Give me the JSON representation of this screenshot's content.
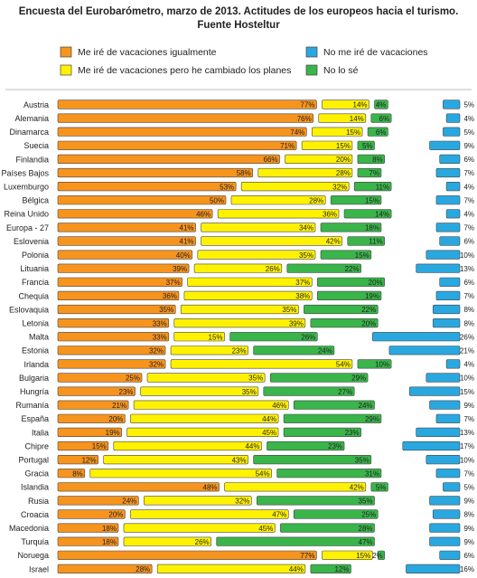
{
  "title": "Encuesta del Eurobarómetro, marzo de 2013. Actitudes de los europeos hacia el turismo.",
  "subtitle": "Fuente Hosteltur",
  "colors": {
    "orange": "#F7941D",
    "yellow": "#FFF200",
    "green": "#39B54A",
    "blue": "#29A8E0",
    "border": "#444444",
    "separator": "#bdbdbd"
  },
  "chart_data": {
    "type": "bar",
    "stacked": true,
    "orientation": "horizontal",
    "grid": false,
    "legend_position": "top",
    "categories": [
      "Austria",
      "Alemania",
      "Dinamarca",
      "Suecia",
      "Finlandia",
      "Países Bajos",
      "Luxemburgo",
      "Bélgica",
      "Reina Unido",
      "Europa - 27",
      "Eslovenia",
      "Polonia",
      "Lituania",
      "Francia",
      "Chequia",
      "Eslovaquia",
      "Letonia",
      "Malta",
      "Estonia",
      "Irlanda",
      "Bulgaria",
      "Hungría",
      "Rumanía",
      "España",
      "Italia",
      "Chipre",
      "Portugal",
      "Gracia",
      "Islandia",
      "Rusia",
      "Croacia",
      "Macedonia",
      "Turquía",
      "Noruega",
      "Israel"
    ],
    "series": [
      {
        "name": "Me iré de vacaciones igualmente",
        "color": "#F7941D",
        "values": [
          77,
          76,
          74,
          71,
          66,
          58,
          53,
          50,
          46,
          41,
          41,
          40,
          39,
          37,
          36,
          35,
          33,
          33,
          32,
          32,
          25,
          23,
          21,
          20,
          19,
          15,
          12,
          8,
          48,
          24,
          20,
          18,
          18,
          77,
          28
        ]
      },
      {
        "name": "Me iré de vacaciones pero he cambiado los planes",
        "color": "#FFF200",
        "values": [
          14,
          14,
          15,
          15,
          20,
          28,
          32,
          28,
          36,
          34,
          42,
          35,
          26,
          37,
          38,
          35,
          39,
          15,
          23,
          54,
          35,
          35,
          46,
          44,
          45,
          44,
          43,
          54,
          42,
          32,
          47,
          45,
          26,
          15,
          44
        ]
      },
      {
        "name": "No lo sé",
        "color": "#39B54A",
        "values": [
          4,
          6,
          6,
          5,
          8,
          7,
          11,
          15,
          14,
          18,
          11,
          15,
          22,
          20,
          19,
          22,
          20,
          26,
          24,
          10,
          29,
          27,
          24,
          29,
          23,
          23,
          35,
          31,
          5,
          35,
          25,
          28,
          47,
          2,
          12
        ]
      },
      {
        "name": "No me iré de vacaciones",
        "color": "#29A8E0",
        "values": [
          5,
          4,
          5,
          9,
          6,
          7,
          4,
          7,
          4,
          7,
          6,
          10,
          13,
          6,
          7,
          8,
          8,
          26,
          21,
          4,
          10,
          15,
          9,
          7,
          13,
          17,
          10,
          7,
          5,
          9,
          8,
          9,
          9,
          6,
          16
        ]
      }
    ],
    "value_suffix": "%"
  }
}
